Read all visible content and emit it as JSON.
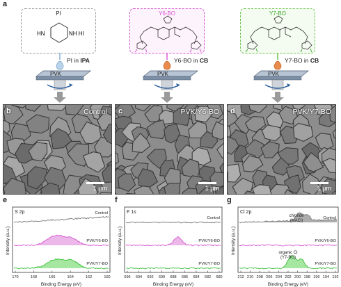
{
  "panels": {
    "a": "a",
    "b": "b",
    "c": "c",
    "d": "d",
    "e": "e",
    "f": "f",
    "g": "g"
  },
  "schematic": {
    "pi_box_title": "PI",
    "pi_formula_left": "HN",
    "pi_formula_right": "NH HI",
    "y6_box_title": "Y6-BO",
    "y7_box_title": "Y7-BO",
    "drop1_prefix": "PI in ",
    "drop1_solvent": "IPA",
    "drop2_prefix": "Y6-BO in ",
    "drop2_solvent": "CB",
    "drop3_prefix": "Y7-BO in ",
    "drop3_solvent": "CB",
    "substrate_label": "PVK",
    "colors": {
      "pi": "#8ab4d8",
      "y6": "#e05ad8",
      "y7": "#6cc44c",
      "drop_blue": "#b8d4ec",
      "drop_orange": "#e98a4e"
    }
  },
  "sem": [
    {
      "label": "Control",
      "scale": "1 μm"
    },
    {
      "label": "PVK/Y6-BO",
      "scale": "1 μm"
    },
    {
      "label": "PVK/Y7-BO",
      "scale": "1 μm"
    }
  ],
  "xps": [
    {
      "element": "S 2p",
      "xlabel": "Binding Energy (eV)",
      "ylabel": "Intensity (a.u.)",
      "ticks": [
        "170",
        "168",
        "166",
        "164",
        "162",
        "160"
      ],
      "traces": [
        "Control",
        "PVK/Y6-BO",
        "PVK/Y7-BO"
      ]
    },
    {
      "element": "F 1s",
      "xlabel": "Binding Energy (eV)",
      "ylabel": "Intensity (a.u.)",
      "ticks": [
        "696",
        "694",
        "692",
        "690",
        "688",
        "686",
        "684",
        "682",
        "680"
      ],
      "traces": [
        "Control",
        "PVK/Y6-BO",
        "PVK/Y7-BO"
      ]
    },
    {
      "element": "Cl 2p",
      "xlabel": "Binding Energy (eV)",
      "ylabel": "Intensity (a.u.)",
      "ticks": [
        "212",
        "210",
        "208",
        "206",
        "204",
        "202",
        "200",
        "198",
        "196",
        "194",
        "192"
      ],
      "traces": [
        "Control",
        "PVK/Y6-BO",
        "PVK/Y7-BO"
      ],
      "annot1": "chloride",
      "annot1b": "(MACl)",
      "annot2": "organic Cl",
      "annot2b": "(Y7-BO)"
    }
  ],
  "trace_colors": [
    "#777777",
    "#d654d0",
    "#3cbf3c"
  ],
  "fill_colors": [
    "#999999",
    "#e7a6e3",
    "#8fe08a"
  ]
}
